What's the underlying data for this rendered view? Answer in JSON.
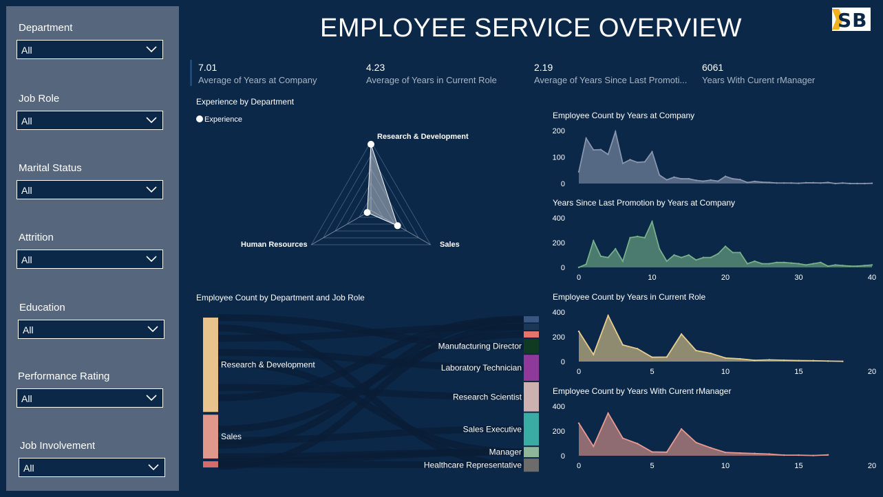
{
  "title": "EMPLOYEE SERVICE OVERVIEW",
  "logo_text": "SB",
  "filters": [
    {
      "label": "Department",
      "value": "All"
    },
    {
      "label": "Job Role",
      "value": "All"
    },
    {
      "label": "Marital Status",
      "value": "All"
    },
    {
      "label": "Attrition",
      "value": "All"
    },
    {
      "label": "Education",
      "value": "All"
    },
    {
      "label": "Performance Rating",
      "value": "All"
    },
    {
      "label": "Job Involvement",
      "value": "All"
    }
  ],
  "kpis": [
    {
      "value": "7.01",
      "label": "Average of Years at Company"
    },
    {
      "value": "4.23",
      "label": "Average of Years in Current Role"
    },
    {
      "value": "2.19",
      "label": "Average of Years Since Last Promoti..."
    },
    {
      "value": "6061",
      "label": "Years With Curent rManager"
    }
  ],
  "colors": {
    "background": "#0c2848",
    "sidebar": "#56677d",
    "area_company": "#8895ad",
    "area_promotion": "#76b08a",
    "area_role": "#e8cd8e",
    "area_manager": "#e89a90"
  },
  "chart_data": [
    {
      "type": "radar",
      "title": "Experience by Department",
      "legend": [
        "Experience"
      ],
      "axes": [
        "Research & Development",
        "Sales",
        "Human Resources"
      ],
      "values": [
        961,
        446,
        63
      ]
    },
    {
      "type": "area",
      "title": "Employee Count by Years at Company",
      "x": [
        0,
        1,
        2,
        3,
        4,
        5,
        6,
        7,
        8,
        9,
        10,
        11,
        12,
        13,
        14,
        15,
        16,
        17,
        18,
        19,
        20,
        21,
        22,
        23,
        24,
        25,
        26,
        27,
        28,
        29,
        30,
        31,
        32,
        33,
        34,
        35,
        36,
        37,
        38,
        39,
        40
      ],
      "values": [
        44,
        171,
        127,
        128,
        110,
        196,
        76,
        90,
        80,
        82,
        120,
        32,
        14,
        24,
        18,
        18,
        12,
        9,
        13,
        9,
        27,
        18,
        15,
        4,
        8,
        5,
        4,
        2,
        2,
        2,
        1,
        3,
        3,
        2,
        4,
        0,
        2,
        0,
        0,
        0,
        1
      ],
      "yticks": [
        0,
        100,
        200
      ],
      "ylim": [
        0,
        200
      ],
      "xlim": [
        0,
        40
      ]
    },
    {
      "type": "area",
      "title": "Years Since Last Promotion by Years at Company",
      "x": [
        0,
        1,
        2,
        3,
        4,
        5,
        6,
        7,
        8,
        9,
        10,
        11,
        12,
        13,
        14,
        15,
        16,
        17,
        18,
        19,
        20,
        21,
        22,
        23,
        24,
        25,
        26,
        27,
        28,
        29,
        30,
        31,
        32,
        33,
        34,
        35,
        36,
        37,
        38,
        39,
        40
      ],
      "values": [
        0,
        25,
        215,
        90,
        80,
        150,
        50,
        240,
        250,
        240,
        370,
        150,
        50,
        100,
        80,
        100,
        60,
        80,
        80,
        110,
        170,
        120,
        120,
        30,
        50,
        30,
        30,
        40,
        40,
        35,
        30,
        20,
        30,
        40,
        10,
        20,
        15,
        10,
        10,
        15,
        20
      ],
      "yticks": [
        0,
        200,
        400
      ],
      "xticks": [
        0,
        10,
        20,
        30,
        40
      ],
      "ylim": [
        0,
        400
      ],
      "xlim": [
        0,
        40
      ]
    },
    {
      "type": "area",
      "title": "Employee Count by Years in Current Role",
      "x": [
        0,
        1,
        2,
        3,
        4,
        5,
        6,
        7,
        8,
        9,
        10,
        11,
        12,
        13,
        14,
        15,
        16,
        17,
        18
      ],
      "values": [
        244,
        57,
        372,
        135,
        104,
        35,
        37,
        222,
        89,
        67,
        29,
        22,
        10,
        14,
        11,
        8,
        7,
        4,
        2
      ],
      "yticks": [
        0,
        200,
        400
      ],
      "xticks": [
        0,
        5,
        10,
        15,
        20
      ],
      "ylim": [
        0,
        400
      ],
      "xlim": [
        0,
        20
      ]
    },
    {
      "type": "area",
      "title": "Employee Count by Years With Curent rManager",
      "x": [
        0,
        1,
        2,
        3,
        4,
        5,
        6,
        7,
        8,
        9,
        10,
        11,
        12,
        13,
        14,
        15,
        16,
        17
      ],
      "values": [
        263,
        76,
        344,
        142,
        98,
        31,
        29,
        216,
        107,
        64,
        27,
        22,
        18,
        14,
        5,
        5,
        2,
        7
      ],
      "yticks": [
        0,
        200,
        400
      ],
      "xticks": [
        0,
        5,
        10,
        15,
        20
      ],
      "ylim": [
        0,
        400
      ],
      "xlim": [
        0,
        20
      ]
    },
    {
      "type": "sankey",
      "title": "Employee Count by Department and Job Role",
      "sources": [
        {
          "name": "Research & Development",
          "value": 961,
          "color": "#e8c48c"
        },
        {
          "name": "Sales",
          "value": 446,
          "color": "#e0988c"
        },
        {
          "name": "",
          "value": 63,
          "color": "#d46c6c"
        }
      ],
      "targets": [
        {
          "name": "",
          "value": 52,
          "color": "#3a5680"
        },
        {
          "name": "",
          "value": 52,
          "color": "#1c3658"
        },
        {
          "name": "",
          "value": 52,
          "color": "#e8736c"
        },
        {
          "name": "Manufacturing Director",
          "value": 145,
          "color": "#103a22"
        },
        {
          "name": "Laboratory Technician",
          "value": 259,
          "color": "#8f3a9a"
        },
        {
          "name": "Research Scientist",
          "value": 292,
          "color": "#cdb0b0"
        },
        {
          "name": "Sales Executive",
          "value": 326,
          "color": "#3aaca4"
        },
        {
          "name": "Manager",
          "value": 102,
          "color": "#8fb89a"
        },
        {
          "name": "Healthcare Representative",
          "value": 131,
          "color": "#6c6c6c"
        }
      ]
    }
  ]
}
